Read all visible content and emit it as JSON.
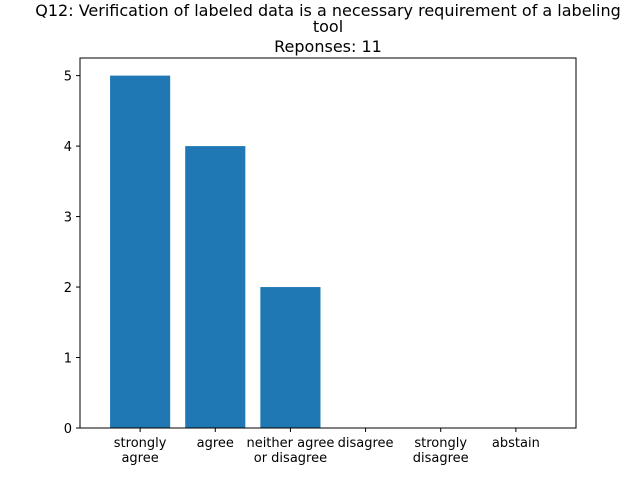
{
  "chart_data": {
    "type": "bar",
    "title_lines": [
      "Q12: Verification of labeled data is a necessary requirement of a labeling",
      "tool",
      "Reponses: 11"
    ],
    "categories": [
      "strongly agree",
      "agree",
      "neither agree or disagree",
      "disagree",
      "strongly disagree",
      "abstain"
    ],
    "category_label_lines": [
      [
        "strongly",
        "agree"
      ],
      [
        "agree"
      ],
      [
        "neither agree",
        "or disagree"
      ],
      [
        "disagree"
      ],
      [
        "strongly",
        "disagree"
      ],
      [
        "abstain"
      ]
    ],
    "values": [
      5,
      4,
      2,
      0,
      0,
      0
    ],
    "yticks": [
      0,
      1,
      2,
      3,
      4,
      5
    ],
    "ylim": [
      0,
      5.25
    ],
    "xlabel": "",
    "ylabel": "",
    "grid": false,
    "bar_color": "#1f77b4"
  }
}
